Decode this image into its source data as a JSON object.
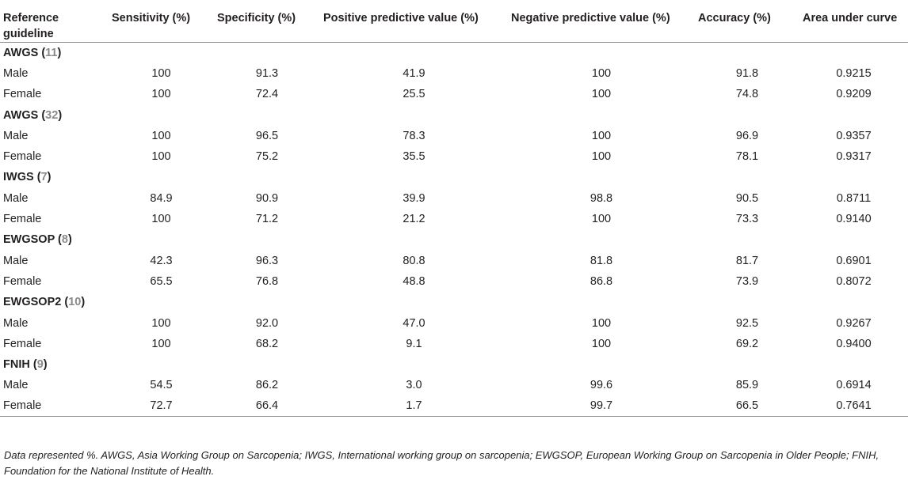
{
  "headers": [
    "Reference guideline",
    "Sensitivity (%)",
    "Specificity (%)",
    "Positive predictive value (%)",
    "Negative predictive value (%)",
    "Accuracy (%)",
    "Area under curve"
  ],
  "groups": [
    {
      "name": "AWGS",
      "ref": "11",
      "rows": [
        {
          "label": "Male",
          "values": [
            "100",
            "91.3",
            "41.9",
            "100",
            "91.8",
            "0.9215"
          ]
        },
        {
          "label": "Female",
          "values": [
            "100",
            "72.4",
            "25.5",
            "100",
            "74.8",
            "0.9209"
          ]
        }
      ]
    },
    {
      "name": "AWGS",
      "ref": "32",
      "rows": [
        {
          "label": "Male",
          "values": [
            "100",
            "96.5",
            "78.3",
            "100",
            "96.9",
            "0.9357"
          ]
        },
        {
          "label": "Female",
          "values": [
            "100",
            "75.2",
            "35.5",
            "100",
            "78.1",
            "0.9317"
          ]
        }
      ]
    },
    {
      "name": "IWGS",
      "ref": "7",
      "rows": [
        {
          "label": "Male",
          "values": [
            "84.9",
            "90.9",
            "39.9",
            "98.8",
            "90.5",
            "0.8711"
          ]
        },
        {
          "label": "Female",
          "values": [
            "100",
            "71.2",
            "21.2",
            "100",
            "73.3",
            "0.9140"
          ]
        }
      ]
    },
    {
      "name": "EWGSOP",
      "ref": "8",
      "rows": [
        {
          "label": "Male",
          "values": [
            "42.3",
            "96.3",
            "80.8",
            "81.8",
            "81.7",
            "0.6901"
          ]
        },
        {
          "label": "Female",
          "values": [
            "65.5",
            "76.8",
            "48.8",
            "86.8",
            "73.9",
            "0.8072"
          ]
        }
      ]
    },
    {
      "name": "EWGSOP2",
      "ref": "10",
      "rows": [
        {
          "label": "Male",
          "values": [
            "100",
            "92.0",
            "47.0",
            "100",
            "92.5",
            "0.9267"
          ]
        },
        {
          "label": "Female",
          "values": [
            "100",
            "68.2",
            "9.1",
            "100",
            "69.2",
            "0.9400"
          ]
        }
      ]
    },
    {
      "name": "FNIH",
      "ref": "9",
      "rows": [
        {
          "label": "Male",
          "values": [
            "54.5",
            "86.2",
            "3.0",
            "99.6",
            "85.9",
            "0.6914"
          ]
        },
        {
          "label": "Female",
          "values": [
            "72.7",
            "66.4",
            "1.7",
            "99.7",
            "66.5",
            "0.7641"
          ]
        }
      ]
    }
  ],
  "footnote": "Data represented %. AWGS, Asia Working Group on Sarcopenia; IWGS, International working group on sarcopenia; EWGSOP, European Working Group on Sarcopenia in Older People; FNIH, Foundation for the National Institute of Health."
}
